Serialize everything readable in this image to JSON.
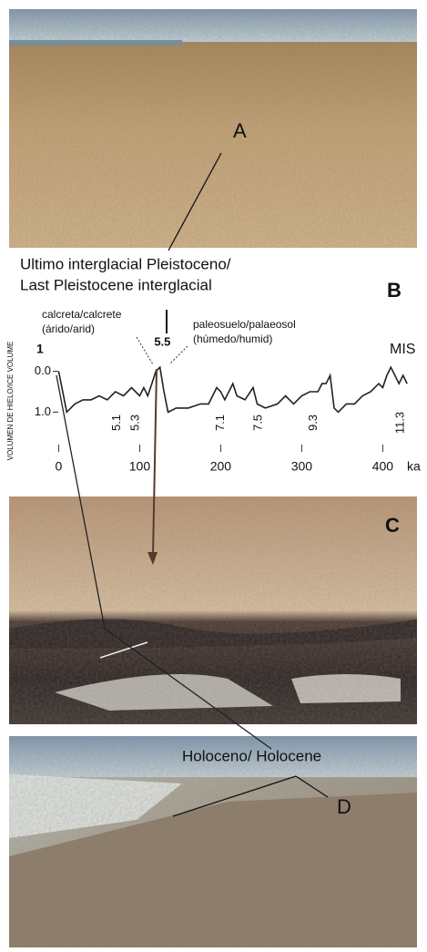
{
  "chart_data": {
    "type": "line",
    "title": "Ultimo interglacial Pleistoceno/",
    "subtitle": "Last Pleistocene interglacial",
    "panel_label": "B",
    "y_label": "VOLUMEN DE HIELO/ICE VOLUME",
    "x_label": "ka",
    "mis_label": "MIS",
    "mis_first": "1",
    "calcrete": [
      "calcreta/calcrete",
      "(árido/arid)"
    ],
    "palaeosol": [
      "paleosuelo/palaeosol",
      "(húmedo/humid)"
    ],
    "color": "#222222",
    "x": [
      0,
      5,
      10,
      20,
      30,
      40,
      50,
      60,
      70,
      80,
      90,
      100,
      105,
      110,
      115,
      120,
      125,
      130,
      135,
      145,
      160,
      175,
      185,
      195,
      200,
      205,
      215,
      220,
      230,
      240,
      245,
      255,
      270,
      280,
      290,
      300,
      310,
      320,
      325,
      330,
      335,
      340,
      345,
      355,
      365,
      375,
      385,
      395,
      400,
      405,
      410,
      415,
      420,
      425,
      430
    ],
    "values": [
      0.0,
      0.5,
      1.0,
      0.8,
      0.7,
      0.7,
      0.6,
      0.7,
      0.5,
      0.6,
      0.4,
      0.6,
      0.4,
      0.6,
      0.3,
      0.0,
      -0.1,
      0.5,
      1.0,
      0.9,
      0.9,
      0.8,
      0.8,
      0.4,
      0.5,
      0.7,
      0.3,
      0.6,
      0.7,
      0.4,
      0.8,
      0.9,
      0.8,
      0.6,
      0.8,
      0.6,
      0.5,
      0.5,
      0.3,
      0.3,
      0.1,
      0.9,
      1.0,
      0.8,
      0.8,
      0.6,
      0.5,
      0.3,
      0.4,
      0.1,
      -0.1,
      0.1,
      0.3,
      0.1,
      0.3
    ],
    "annotations": [
      {
        "text": "5.1",
        "x": 72
      },
      {
        "text": "5.3",
        "x": 95
      },
      {
        "text": "5.5",
        "x": 128
      },
      {
        "text": "7.1",
        "x": 200
      },
      {
        "text": "7.5",
        "x": 247
      },
      {
        "text": "9.3",
        "x": 315
      },
      {
        "text": "11.3",
        "x": 422
      }
    ],
    "xlim": [
      -5,
      440
    ],
    "xticks": [
      0,
      100,
      200,
      300,
      400
    ],
    "ylim": [
      1.35,
      -0.35
    ],
    "yticks": [
      {
        "value": 0,
        "label": "0.0"
      },
      {
        "value": 1,
        "label": "1.0"
      }
    ]
  },
  "photos": {
    "a": "A",
    "c": "C",
    "d": "D",
    "holocene": "Holoceno/ Holocene"
  }
}
